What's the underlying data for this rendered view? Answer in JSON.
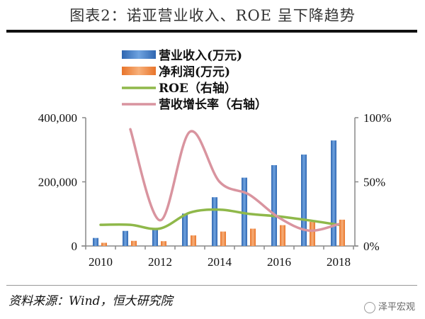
{
  "title": "图表2：诺亚营业收入、ROE 呈下降趋势",
  "source": "资料来源：Wind，恒大研究院",
  "watermark": "泽平宏观",
  "chart_data": {
    "type": "bar",
    "title": "图表2：诺亚营业收入、ROE 呈下降趋势",
    "categories": [
      "2010",
      "2011",
      "2012",
      "2013",
      "2014",
      "2015",
      "2016",
      "2017",
      "2018"
    ],
    "x_tick_labels": [
      "2010",
      "2012",
      "2014",
      "2016",
      "2018"
    ],
    "left_axis": {
      "ylim": [
        0,
        400000
      ],
      "tick_labels": [
        "0",
        "200,000",
        "400,000"
      ]
    },
    "right_axis": {
      "ylim": [
        0,
        100
      ],
      "tick_labels": [
        "0%",
        "50%",
        "100%"
      ]
    },
    "legend_position": "top-center",
    "series": [
      {
        "name": "营业收入(万元)",
        "type": "bar",
        "axis": "left",
        "color": "#3a78c2",
        "values": [
          25000,
          47000,
          54000,
          101000,
          152000,
          213000,
          252000,
          285000,
          329000
        ]
      },
      {
        "name": "净利润(万元)",
        "type": "bar",
        "axis": "left",
        "color": "#f08a3c",
        "values": [
          10000,
          16000,
          15000,
          33000,
          45000,
          54000,
          65000,
          75000,
          82000
        ]
      },
      {
        "name": "ROE（右轴）",
        "type": "line",
        "axis": "right",
        "color": "#8fb84a",
        "values": [
          16.5,
          16.5,
          13.6,
          26,
          28.3,
          25,
          23,
          20,
          16.5
        ]
      },
      {
        "name": "营收增长率（右轴）",
        "type": "line",
        "axis": "right",
        "color": "#d9949f",
        "values": [
          null,
          91,
          20,
          89,
          50,
          40,
          22,
          12,
          17
        ]
      }
    ]
  }
}
